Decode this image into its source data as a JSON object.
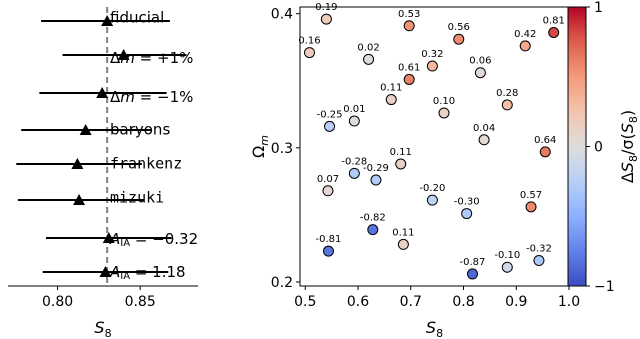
{
  "chart_data": [
    {
      "type": "scatter",
      "subtype": "errorbar",
      "xlabel": "S_8",
      "xticks": [
        0.8,
        0.85
      ],
      "xlim": [
        0.77,
        0.885
      ],
      "reference_line": {
        "x": 0.83,
        "style": "dashed",
        "color": "#808080"
      },
      "rows": [
        {
          "label": "fiducial",
          "label_prefix": "",
          "label_math": "",
          "label_suffix": "",
          "mono": false,
          "value": 0.83,
          "lo": 0.79,
          "hi": 0.868
        },
        {
          "label": "Δm = +1%",
          "label_prefix": "Δ",
          "label_math": "m",
          "label_suffix": " = +1%",
          "mono": false,
          "value": 0.84,
          "lo": 0.803,
          "hi": 0.878
        },
        {
          "label": "Δm = −1%",
          "label_prefix": "Δ",
          "label_math": "m",
          "label_suffix": " = −1%",
          "mono": false,
          "value": 0.827,
          "lo": 0.789,
          "hi": 0.866
        },
        {
          "label": "baryons",
          "label_prefix": "",
          "label_math": "",
          "label_suffix": "",
          "mono": false,
          "value": 0.817,
          "lo": 0.778,
          "hi": 0.857
        },
        {
          "label": "frankenz",
          "label_prefix": "",
          "label_math": "",
          "label_suffix": "",
          "mono": true,
          "value": 0.812,
          "lo": 0.775,
          "hi": 0.851
        },
        {
          "label": "mizuki",
          "label_prefix": "",
          "label_math": "",
          "label_suffix": "",
          "mono": true,
          "value": 0.813,
          "lo": 0.776,
          "hi": 0.852
        },
        {
          "label": "A_IA = −0.32",
          "label_prefix": "",
          "label_math": "A",
          "label_sub": "IA",
          "label_suffix": " = −0.32",
          "mono": false,
          "value": 0.831,
          "lo": 0.793,
          "hi": 0.869
        },
        {
          "label": "A_IA = 1.18",
          "label_prefix": "",
          "label_math": "A",
          "label_sub": "IA",
          "label_suffix": " = 1.18",
          "mono": false,
          "value": 0.829,
          "lo": 0.791,
          "hi": 0.867
        }
      ]
    },
    {
      "type": "scatter",
      "xlabel": "S_8",
      "ylabel": "Ω_m",
      "xlim": [
        0.49,
        1.0
      ],
      "ylim": [
        0.197,
        0.405
      ],
      "xticks": [
        0.5,
        0.6,
        0.7,
        0.8,
        0.9,
        1.0
      ],
      "yticks": [
        0.2,
        0.3,
        0.4
      ],
      "colorbar": {
        "label": "ΔS_8/σ(S_8)",
        "range": [
          -1,
          1
        ],
        "ticks": [
          -1,
          0,
          1
        ],
        "tick_labels": [
          "−1",
          "0",
          "1"
        ],
        "cmap": "coolwarm"
      },
      "points": [
        {
          "x": 0.54,
          "y": 0.396,
          "c": 0.19
        },
        {
          "x": 0.697,
          "y": 0.391,
          "c": 0.53
        },
        {
          "x": 0.791,
          "y": 0.381,
          "c": 0.56
        },
        {
          "x": 0.917,
          "y": 0.376,
          "c": 0.42
        },
        {
          "x": 0.971,
          "y": 0.386,
          "c": 0.81
        },
        {
          "x": 0.508,
          "y": 0.371,
          "c": 0.16
        },
        {
          "x": 0.62,
          "y": 0.366,
          "c": 0.02
        },
        {
          "x": 0.741,
          "y": 0.361,
          "c": 0.32
        },
        {
          "x": 0.832,
          "y": 0.356,
          "c": 0.06
        },
        {
          "x": 0.697,
          "y": 0.351,
          "c": 0.61
        },
        {
          "x": 0.663,
          "y": 0.336,
          "c": 0.11
        },
        {
          "x": 0.763,
          "y": 0.326,
          "c": 0.1
        },
        {
          "x": 0.883,
          "y": 0.332,
          "c": 0.28
        },
        {
          "x": 0.593,
          "y": 0.32,
          "c": 0.01
        },
        {
          "x": 0.546,
          "y": 0.316,
          "c": -0.25
        },
        {
          "x": 0.839,
          "y": 0.306,
          "c": 0.04
        },
        {
          "x": 0.955,
          "y": 0.297,
          "c": 0.64
        },
        {
          "x": 0.681,
          "y": 0.288,
          "c": 0.11
        },
        {
          "x": 0.593,
          "y": 0.281,
          "c": -0.28
        },
        {
          "x": 0.634,
          "y": 0.276,
          "c": -0.29
        },
        {
          "x": 0.543,
          "y": 0.268,
          "c": 0.07
        },
        {
          "x": 0.741,
          "y": 0.261,
          "c": -0.2
        },
        {
          "x": 0.806,
          "y": 0.251,
          "c": -0.3
        },
        {
          "x": 0.928,
          "y": 0.256,
          "c": 0.57
        },
        {
          "x": 0.628,
          "y": 0.239,
          "c": -0.82
        },
        {
          "x": 0.686,
          "y": 0.228,
          "c": 0.11
        },
        {
          "x": 0.544,
          "y": 0.223,
          "c": -0.81
        },
        {
          "x": 0.943,
          "y": 0.216,
          "c": -0.32
        },
        {
          "x": 0.883,
          "y": 0.211,
          "c": -0.1
        },
        {
          "x": 0.817,
          "y": 0.206,
          "c": -0.87
        }
      ]
    }
  ]
}
